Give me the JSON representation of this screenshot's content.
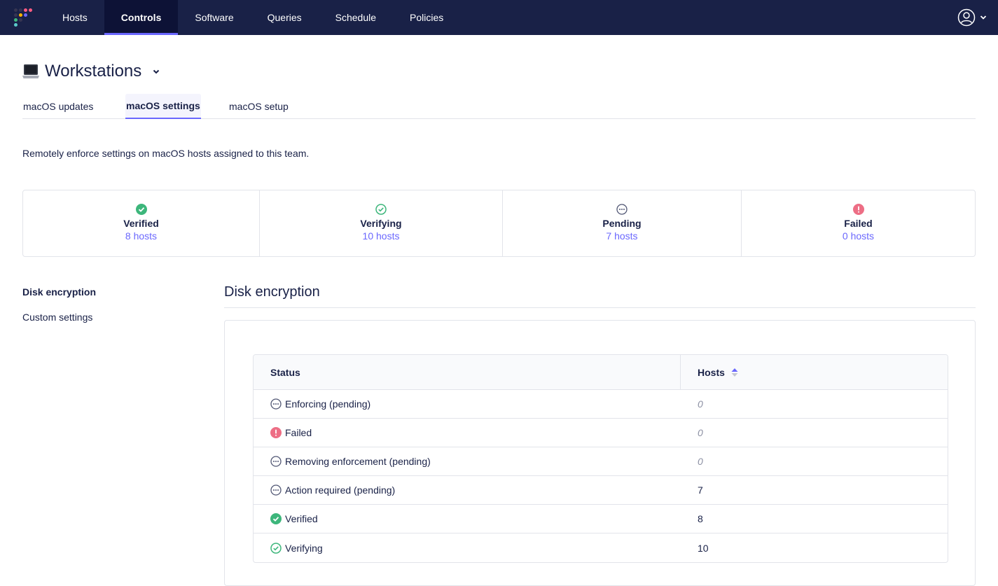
{
  "nav": {
    "items": [
      {
        "label": "Hosts"
      },
      {
        "label": "Controls"
      },
      {
        "label": "Software"
      },
      {
        "label": "Queries"
      },
      {
        "label": "Schedule"
      },
      {
        "label": "Policies"
      }
    ],
    "active": "Controls",
    "user_icon": "user-avatar-icon"
  },
  "team": {
    "name": "Workstations",
    "icon": "laptop-icon"
  },
  "tabs": [
    {
      "label": "macOS updates"
    },
    {
      "label": "macOS settings"
    },
    {
      "label": "macOS setup"
    }
  ],
  "active_tab": "macOS settings",
  "description": "Remotely enforce settings on macOS hosts assigned to this team.",
  "summary": [
    {
      "title": "Verified",
      "count": "8 hosts",
      "icon": "check-filled-icon"
    },
    {
      "title": "Verifying",
      "count": "10 hosts",
      "icon": "check-outline-icon"
    },
    {
      "title": "Pending",
      "count": "7 hosts",
      "icon": "pending-icon"
    },
    {
      "title": "Failed",
      "count": "0 hosts",
      "icon": "error-icon"
    }
  ],
  "sidenav": [
    {
      "label": "Disk encryption"
    },
    {
      "label": "Custom settings"
    }
  ],
  "section": {
    "title": "Disk encryption"
  },
  "table": {
    "headers": {
      "status": "Status",
      "hosts": "Hosts"
    },
    "rows": [
      {
        "status": "Enforcing (pending)",
        "hosts": "0",
        "icon": "pending-icon"
      },
      {
        "status": "Failed",
        "hosts": "0",
        "icon": "error-icon"
      },
      {
        "status": "Removing enforcement (pending)",
        "hosts": "0",
        "icon": "pending-icon"
      },
      {
        "status": "Action required (pending)",
        "hosts": "7",
        "icon": "pending-icon"
      },
      {
        "status": "Verified",
        "hosts": "8",
        "icon": "check-filled-icon"
      },
      {
        "status": "Verifying",
        "hosts": "10",
        "icon": "check-outline-icon"
      }
    ]
  },
  "colors": {
    "nav_bg": "#192147",
    "accent": "#6a67fe",
    "success": "#3db67b",
    "error": "#ed6e85",
    "muted": "#8b8fa2"
  }
}
